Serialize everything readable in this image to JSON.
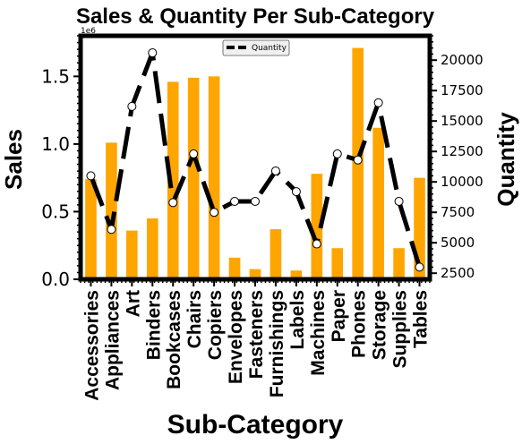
{
  "chart_data": {
    "type": "bar+line",
    "title": "Sales & Quantity Per Sub-Category",
    "xlabel": "Sub-Category",
    "ylabel": "Sales",
    "y2label": "Quantity",
    "y_offset_text": "1e6",
    "categories": [
      "Accessories",
      "Appliances",
      "Art",
      "Binders",
      "Bookcases",
      "Chairs",
      "Copiers",
      "Envelopes",
      "Fasteners",
      "Furnishings",
      "Labels",
      "Machines",
      "Paper",
      "Phones",
      "Storage",
      "Supplies",
      "Tables"
    ],
    "series": [
      {
        "name": "Sales",
        "axis": "left",
        "kind": "bar",
        "color": "#FFA500",
        "values": [
          740000,
          1010000,
          360000,
          450000,
          1460000,
          1490000,
          1500000,
          160000,
          75000,
          370000,
          65000,
          780000,
          230000,
          1710000,
          1120000,
          230000,
          750000
        ]
      },
      {
        "name": "Quantity",
        "axis": "right",
        "kind": "line",
        "color": "#000000",
        "values": [
          10500,
          6100,
          16200,
          20600,
          8300,
          12300,
          7500,
          8400,
          8400,
          10900,
          9200,
          4900,
          12300,
          11800,
          16500,
          8400,
          3000
        ]
      }
    ],
    "ylim": [
      0,
      1800000
    ],
    "y2lim": [
      2000,
      22000
    ],
    "yticks": [
      "0.0",
      "0.5",
      "1.0",
      "1.5"
    ],
    "ytick_values": [
      0,
      500000,
      1000000,
      1500000
    ],
    "y2ticks": [
      "2500",
      "5000",
      "7500",
      "10000",
      "12500",
      "15000",
      "17500",
      "20000"
    ],
    "y2tick_values": [
      2500,
      5000,
      7500,
      10000,
      12500,
      15000,
      17500,
      20000
    ],
    "legend": {
      "position": "top-center",
      "entries": [
        "Quantity"
      ]
    },
    "grid": false
  }
}
